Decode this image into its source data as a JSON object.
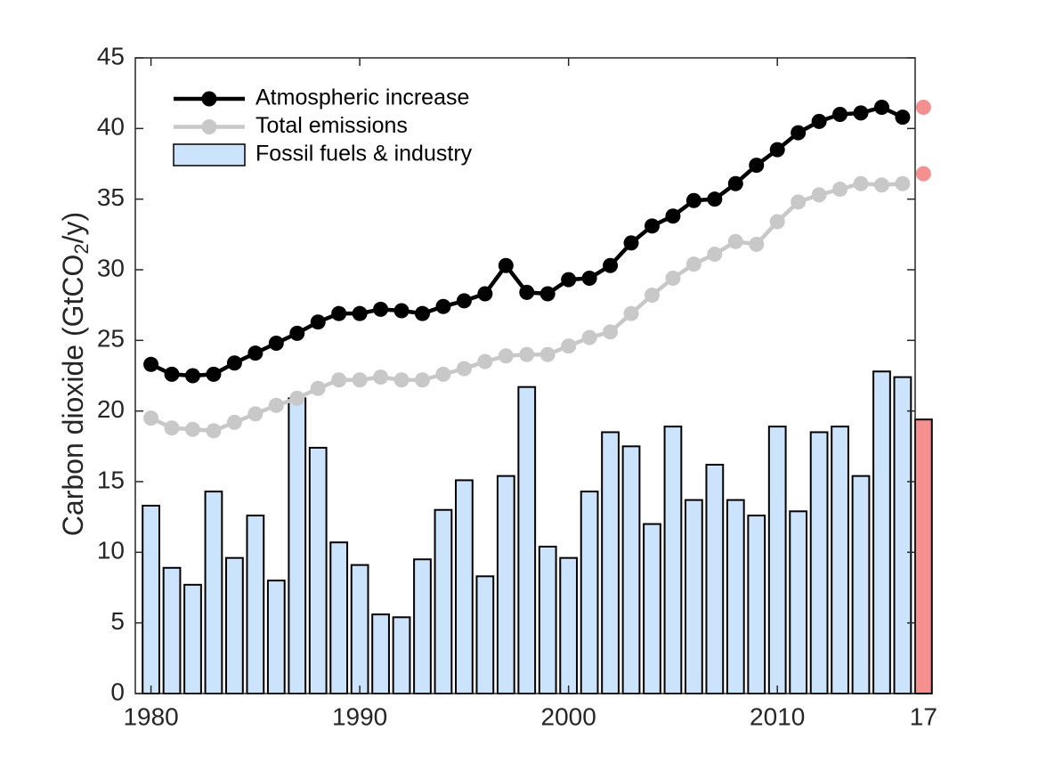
{
  "chart_data": {
    "type": "combo",
    "y_label": "Carbon dioxide (GtCO",
    "y_label_sub": "2",
    "y_label_end": "/y)",
    "x": [
      1980,
      1981,
      1982,
      1983,
      1984,
      1985,
      1986,
      1987,
      1988,
      1989,
      1990,
      1991,
      1992,
      1993,
      1994,
      1995,
      1996,
      1997,
      1998,
      1999,
      2000,
      2001,
      2002,
      2003,
      2004,
      2005,
      2006,
      2007,
      2008,
      2009,
      2010,
      2011,
      2012,
      2013,
      2014,
      2015,
      2016,
      2017
    ],
    "series": [
      {
        "name": "Atmospheric increase",
        "kind": "line",
        "color": "#000000",
        "highlight_color": "#f4908f",
        "values": [
          23.3,
          22.6,
          22.5,
          22.6,
          23.4,
          24.1,
          24.8,
          25.5,
          26.3,
          26.9,
          26.9,
          27.2,
          27.1,
          26.9,
          27.4,
          27.8,
          28.3,
          30.3,
          28.4,
          28.3,
          29.3,
          29.4,
          30.3,
          31.9,
          33.1,
          33.8,
          34.9,
          35.0,
          36.1,
          37.4,
          38.5,
          39.7,
          40.5,
          41.0,
          41.1,
          41.5,
          40.8,
          41.5
        ]
      },
      {
        "name": "Total emissions",
        "kind": "line",
        "color": "#c8c8c8",
        "highlight_color": "#f4908f",
        "values": [
          19.5,
          18.8,
          18.7,
          18.6,
          19.2,
          19.8,
          20.4,
          20.9,
          21.6,
          22.2,
          22.2,
          22.4,
          22.2,
          22.2,
          22.6,
          23.0,
          23.5,
          23.9,
          24.0,
          24.0,
          24.6,
          25.2,
          25.6,
          26.9,
          28.2,
          29.4,
          30.4,
          31.1,
          32.0,
          31.8,
          33.4,
          34.8,
          35.3,
          35.7,
          36.1,
          36.0,
          36.1,
          36.8
        ]
      },
      {
        "name": "Fossil fuels & industry",
        "kind": "bar",
        "color": "#cce4fb",
        "highlight_color": "#f4908f",
        "values": [
          13.3,
          8.9,
          7.7,
          14.3,
          9.6,
          12.6,
          8.0,
          20.9,
          17.4,
          10.7,
          9.1,
          5.6,
          5.4,
          9.5,
          13.0,
          15.1,
          8.3,
          15.4,
          21.7,
          10.4,
          9.6,
          14.3,
          18.5,
          17.5,
          12.0,
          18.9,
          13.7,
          16.2,
          13.7,
          12.6,
          18.9,
          12.9,
          18.5,
          18.9,
          15.4,
          22.8,
          22.4,
          19.4
        ]
      }
    ],
    "xlim": [
      1979.25,
      2016.6
    ],
    "xticks": [
      1980,
      1990,
      2000,
      2010,
      {
        "value": 2017,
        "label": "17"
      }
    ],
    "ylim": [
      0,
      45
    ],
    "yticks": [
      0,
      5,
      10,
      15,
      20,
      25,
      30,
      35,
      40,
      45
    ],
    "legend": "upper-left"
  }
}
